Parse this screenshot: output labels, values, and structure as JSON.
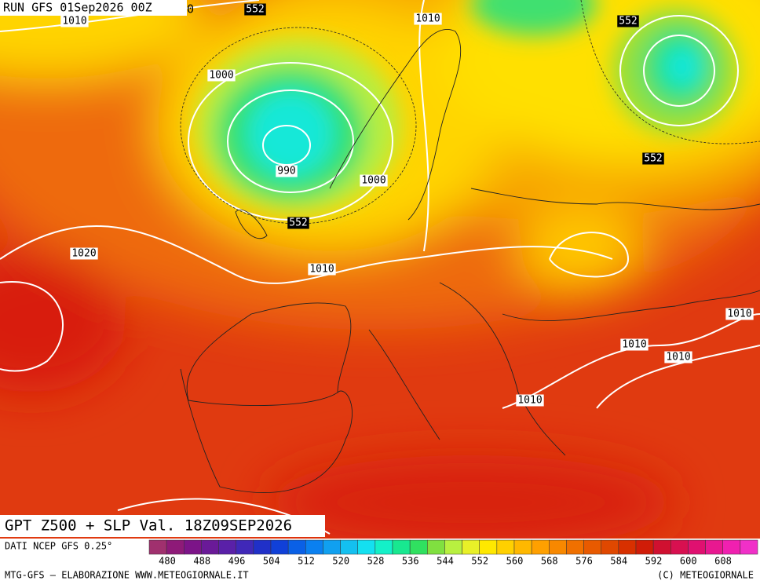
{
  "header": {
    "run": "RUN GFS 01Sep2026 00Z",
    "corner": "0"
  },
  "height_labels": [
    552,
    552,
    552,
    552
  ],
  "pressure_labels": [
    1010,
    1010,
    1000,
    990,
    1000,
    1020,
    1010,
    1010,
    1010,
    1010,
    1010
  ],
  "title": "GPT Z500 + SLP Val. 18Z09SEP2026",
  "colorbar": {
    "source": "DATI NCEP GFS 0.25°",
    "labels": [
      480,
      488,
      496,
      504,
      512,
      520,
      528,
      536,
      544,
      552,
      560,
      568,
      576,
      584,
      592,
      600,
      608
    ],
    "colors": [
      "#a0306e",
      "#8e1a78",
      "#7c1488",
      "#6a1a98",
      "#5a20a8",
      "#4028b8",
      "#2030c8",
      "#1040d8",
      "#0a60e6",
      "#0a80f0",
      "#10a0f0",
      "#14c0f0",
      "#14e0f0",
      "#14f0c8",
      "#18e890",
      "#30e060",
      "#80e040",
      "#b8f040",
      "#e8f028",
      "#ffe800",
      "#ffd000",
      "#ffb800",
      "#ffa000",
      "#f88800",
      "#f07000",
      "#e85a00",
      "#e04800",
      "#d83000",
      "#d01c08",
      "#d01030",
      "#d81050",
      "#e01070",
      "#e81890",
      "#f020b0",
      "#f030c8"
    ]
  },
  "footer": {
    "left": "MTG-GFS – ELABORAZIONE WWW.METEOGIORNALE.IT",
    "right": "(C) METEOGIORNALE"
  }
}
